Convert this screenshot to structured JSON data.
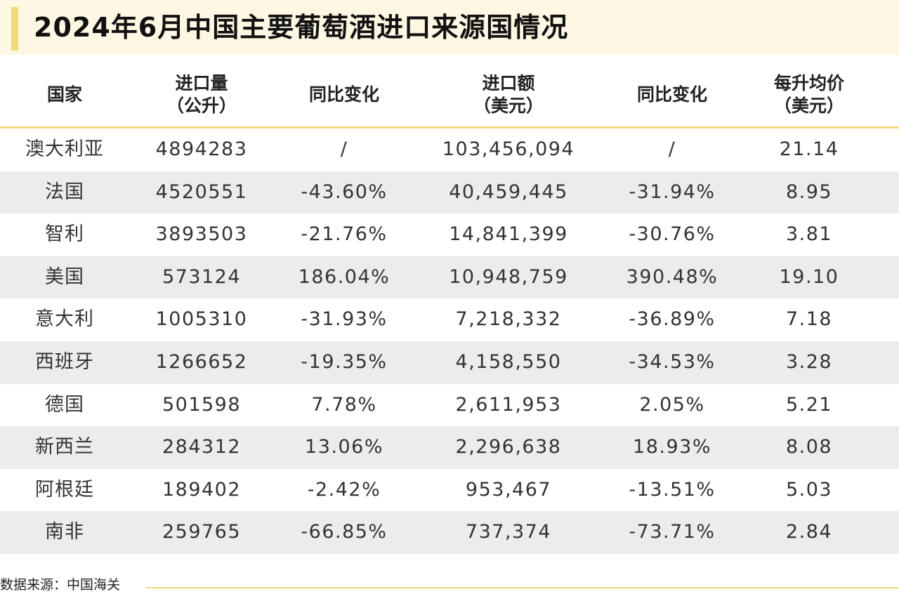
{
  "title": "2024年6月中国主要葡萄酒进口来源国情况",
  "source": "数据来源：中国海关",
  "colors": {
    "title_background": "#fdf7e3",
    "accent": "#f3d97a",
    "shaded_row": "#ececec"
  },
  "chart_data": {
    "type": "table",
    "title": "2024年6月中国主要葡萄酒进口来源国情况",
    "columns": [
      {
        "line1": "国家",
        "line2": ""
      },
      {
        "line1": "进口量",
        "line2": "（公升）"
      },
      {
        "line1": "同比变化",
        "line2": ""
      },
      {
        "line1": "进口额",
        "line2": "（美元）"
      },
      {
        "line1": "同比变化",
        "line2": ""
      },
      {
        "line1": "每升均价",
        "line2": "（美元）"
      }
    ],
    "rows": [
      [
        "澳大利亚",
        "4894283",
        "/",
        "103,456,094",
        "/",
        "21.14"
      ],
      [
        "法国",
        "4520551",
        "-43.60%",
        "40,459,445",
        "-31.94%",
        "8.95"
      ],
      [
        "智利",
        "3893503",
        "-21.76%",
        "14,841,399",
        "-30.76%",
        "3.81"
      ],
      [
        "美国",
        "573124",
        "186.04%",
        "10,948,759",
        "390.48%",
        "19.10"
      ],
      [
        "意大利",
        "1005310",
        "-31.93%",
        "7,218,332",
        "-36.89%",
        "7.18"
      ],
      [
        "西班牙",
        "1266652",
        "-19.35%",
        "4,158,550",
        "-34.53%",
        "3.28"
      ],
      [
        "德国",
        "501598",
        "7.78%",
        "2,611,953",
        "2.05%",
        "5.21"
      ],
      [
        "新西兰",
        "284312",
        "13.06%",
        "2,296,638",
        "18.93%",
        "8.08"
      ],
      [
        "阿根廷",
        "189402",
        "-2.42%",
        "953,467",
        "-13.51%",
        "5.03"
      ],
      [
        "南非",
        "259765",
        "-66.85%",
        "737,374",
        "-73.71%",
        "2.84"
      ]
    ]
  }
}
